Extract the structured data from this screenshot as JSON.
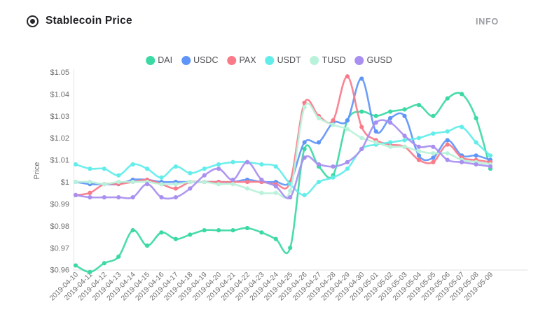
{
  "header": {
    "icon": "bullseye-icon",
    "title": "Stablecoin Price",
    "info_label": "INFO"
  },
  "chart_data": {
    "type": "line",
    "title": "Stablecoin Price",
    "xlabel": "",
    "ylabel": "Price",
    "ylim": [
      0.96,
      1.05
    ],
    "grid": false,
    "legend_position": "top",
    "y_ticks": [
      {
        "label": "$1.05",
        "value": 1.05
      },
      {
        "label": "$1.04",
        "value": 1.04
      },
      {
        "label": "$1.03",
        "value": 1.03
      },
      {
        "label": "$1.02",
        "value": 1.02
      },
      {
        "label": "$1.01",
        "value": 1.01
      },
      {
        "label": "$1",
        "value": 1.0
      },
      {
        "label": "$0.99",
        "value": 0.99
      },
      {
        "label": "$0.98",
        "value": 0.98
      },
      {
        "label": "$0.97",
        "value": 0.97
      },
      {
        "label": "$0.96",
        "value": 0.96
      }
    ],
    "x": [
      "2019-04-10",
      "2019-04-11",
      "2019-04-12",
      "2019-04-13",
      "2019-04-14",
      "2019-04-15",
      "2019-04-16",
      "2019-04-17",
      "2019-04-18",
      "2019-04-19",
      "2019-04-20",
      "2019-04-21",
      "2019-04-22",
      "2019-04-23",
      "2019-04-24",
      "2019-04-25",
      "2019-04-26",
      "2019-04-27",
      "2019-04-28",
      "2019-04-29",
      "2019-04-30",
      "2019-05-01",
      "2019-05-02",
      "2019-05-03",
      "2019-05-04",
      "2019-05-05",
      "2019-05-06",
      "2019-05-07",
      "2019-05-08",
      "2019-05-09"
    ],
    "series": [
      {
        "name": "DAI",
        "color": "#3bd9a3",
        "values": [
          0.962,
          0.959,
          0.963,
          0.966,
          0.978,
          0.971,
          0.977,
          0.974,
          0.976,
          0.978,
          0.978,
          0.978,
          0.979,
          0.977,
          0.974,
          0.97,
          1.015,
          1.007,
          1.003,
          1.028,
          1.032,
          1.03,
          1.032,
          1.033,
          1.035,
          1.03,
          1.038,
          1.04,
          1.029,
          1.006
        ]
      },
      {
        "name": "USDC",
        "color": "#6095f8",
        "values": [
          1.0,
          0.999,
          0.999,
          0.999,
          1.001,
          1.001,
          1.0,
          1.0,
          1.0,
          1.0,
          1.0,
          1.0,
          1.001,
          1.0,
          1.0,
          1.0,
          1.018,
          1.018,
          1.027,
          1.028,
          1.047,
          1.023,
          1.029,
          1.03,
          1.012,
          1.011,
          1.019,
          1.012,
          1.012,
          1.01
        ]
      },
      {
        "name": "PAX",
        "color": "#f97b8a",
        "values": [
          0.994,
          0.995,
          0.999,
          0.999,
          1.0,
          1.001,
          0.999,
          0.997,
          1.0,
          1.0,
          1.0,
          1.0,
          1.0,
          1.0,
          0.999,
          1.0,
          1.036,
          1.03,
          1.028,
          1.048,
          1.025,
          1.019,
          1.017,
          1.016,
          1.01,
          1.009,
          1.017,
          1.011,
          1.01,
          1.009
        ]
      },
      {
        "name": "USDT",
        "color": "#62edea",
        "values": [
          1.008,
          1.006,
          1.006,
          1.003,
          1.008,
          1.006,
          1.002,
          1.007,
          1.004,
          1.006,
          1.008,
          1.009,
          1.009,
          1.008,
          1.007,
          0.999,
          0.994,
          1.0,
          1.002,
          1.006,
          1.015,
          1.017,
          1.018,
          1.019,
          1.02,
          1.022,
          1.023,
          1.025,
          1.018,
          1.012
        ]
      },
      {
        "name": "TUSD",
        "color": "#b9f2da",
        "values": [
          1.0,
          1.0,
          0.999,
          1.0,
          1.0,
          1.0,
          0.999,
          0.999,
          1.0,
          1.0,
          0.999,
          0.999,
          0.997,
          0.995,
          0.995,
          0.996,
          1.034,
          1.029,
          1.026,
          1.024,
          1.02,
          1.018,
          1.016,
          1.016,
          1.014,
          1.013,
          1.013,
          1.01,
          1.009,
          1.008
        ]
      },
      {
        "name": "GUSD",
        "color": "#a88ff0",
        "values": [
          0.994,
          0.993,
          0.993,
          0.993,
          0.993,
          0.999,
          0.993,
          0.993,
          0.997,
          1.003,
          1.006,
          1.001,
          1.009,
          1.001,
          0.998,
          0.993,
          1.011,
          1.008,
          1.007,
          1.009,
          1.015,
          1.027,
          1.027,
          1.021,
          1.016,
          1.016,
          1.01,
          1.009,
          1.008,
          1.007
        ]
      }
    ]
  }
}
